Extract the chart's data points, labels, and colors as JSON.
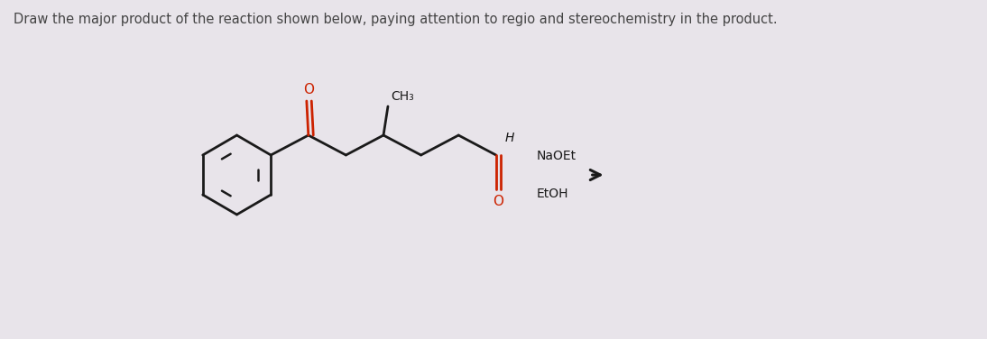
{
  "bg_color": "#e8e4ea",
  "title_text": "Draw the major product of the reaction shown below, paying attention to regio and stereochemistry in the product.",
  "title_fontsize": 10.5,
  "title_color": "#444444",
  "bond_color": "#1a1a1a",
  "carbonyl_color": "#cc2200",
  "ch3_label": "CH₃",
  "h_label": "H",
  "o_label": "O",
  "naOEt_label": "NaOEt",
  "EtOH_label": "EtOH"
}
